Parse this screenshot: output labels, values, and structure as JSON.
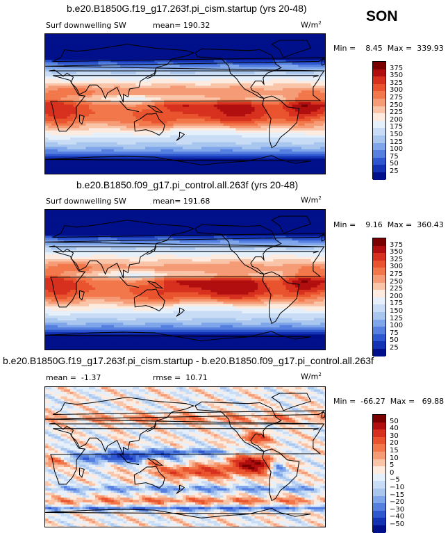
{
  "season": "SON",
  "panels": [
    {
      "title": "b.e20.B1850G.f19_g17.263f.pi_cism.startup (yrs 20-48)",
      "left_label": "Surf downwelling SW",
      "stat1": "mean= 190.32",
      "stat2": "",
      "units": "W/m",
      "units_sup": "2",
      "minmax_min_label": "Min =",
      "minmax_min_value": "8.45",
      "minmax_max_label": "Max =",
      "minmax_max_value": "339.93"
    },
    {
      "title": "b.e20.B1850.f09_g17.pi_control.all.263f (yrs 20-48)",
      "left_label": "Surf downwelling SW",
      "stat1": "mean= 191.68",
      "stat2": "",
      "units": "W/m",
      "units_sup": "2",
      "minmax_min_label": "Min =",
      "minmax_min_value": "9.16",
      "minmax_max_label": "Max =",
      "minmax_max_value": "360.43"
    },
    {
      "title": "b.e20.B1850G.f19_g17.263f.pi_cism.startup - b.e20.B1850.f09_g17.pi_control.all.263f",
      "left_label": "",
      "stat1": "mean =  -1.37",
      "stat2": "rmse =  10.71",
      "units": "W/m",
      "units_sup": "2",
      "minmax_min_label": "Min =",
      "minmax_min_value": "-66.27",
      "minmax_max_label": "Max =",
      "minmax_max_value": "69.88"
    }
  ],
  "chart_data": [
    {
      "type": "heatmap",
      "title": "b.e20.B1850G.f19_g17.263f.pi_cism.startup (yrs 20-48)",
      "variable": "Surf downwelling SW",
      "units": "W/m2",
      "mean": 190.32,
      "min": 8.45,
      "max": 339.93,
      "colorbar_levels": [
        375,
        350,
        325,
        300,
        275,
        250,
        225,
        200,
        175,
        150,
        125,
        100,
        75,
        50,
        25
      ],
      "colorbar_colors": [
        "#7a0000",
        "#b10f0f",
        "#d7301f",
        "#e9542f",
        "#f2784b",
        "#f59b76",
        "#f9c4a8",
        "#fdebe0",
        "#e6f0fb",
        "#c9dcf5",
        "#a9c6ef",
        "#7fa5ea",
        "#5680e0",
        "#2f58d0",
        "#1332b4",
        "#00108a"
      ]
    },
    {
      "type": "heatmap",
      "title": "b.e20.B1850.f09_g17.pi_control.all.263f (yrs 20-48)",
      "variable": "Surf downwelling SW",
      "units": "W/m2",
      "mean": 191.68,
      "min": 9.16,
      "max": 360.43,
      "colorbar_levels": [
        375,
        350,
        325,
        300,
        275,
        250,
        225,
        200,
        175,
        150,
        125,
        100,
        75,
        50,
        25
      ],
      "colorbar_colors": [
        "#7a0000",
        "#b10f0f",
        "#d7301f",
        "#e9542f",
        "#f2784b",
        "#f59b76",
        "#f9c4a8",
        "#fdebe0",
        "#e6f0fb",
        "#c9dcf5",
        "#a9c6ef",
        "#7fa5ea",
        "#5680e0",
        "#2f58d0",
        "#1332b4",
        "#00108a"
      ]
    },
    {
      "type": "heatmap",
      "title": "b.e20.B1850G.f19_g17.263f.pi_cism.startup - b.e20.B1850.f09_g17.pi_control.all.263f",
      "units": "W/m2",
      "mean": -1.37,
      "rmse": 10.71,
      "min": -66.27,
      "max": 69.88,
      "colorbar_levels": [
        50,
        40,
        30,
        20,
        15,
        10,
        5,
        0,
        -5,
        -10,
        -15,
        -20,
        -30,
        -40,
        -50
      ],
      "colorbar_colors": [
        "#7a0000",
        "#b10f0f",
        "#d7301f",
        "#e9542f",
        "#f2784b",
        "#f59b76",
        "#f9c4a8",
        "#fdebe0",
        "#e6f0fb",
        "#c9dcf5",
        "#a9c6ef",
        "#7fa5ea",
        "#5680e0",
        "#2f58d0",
        "#1332b4",
        "#00108a"
      ]
    }
  ]
}
